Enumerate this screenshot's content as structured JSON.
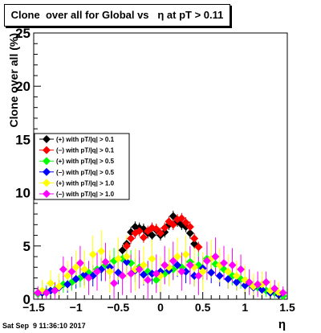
{
  "window": {
    "title": "Clone  over all for Global vs   η at pT > 0.11"
  },
  "footer": {
    "timestamp": "Sat Sep  9 11:36:10 2017"
  },
  "chart_data": {
    "type": "scatter",
    "title": "Clone  over all for Global vs   η at pT > 0.11",
    "xlabel": "η",
    "ylabel": "Clone  over all (%)",
    "xlim": [
      -1.5,
      1.5
    ],
    "ylim": [
      0,
      25
    ],
    "x_ticks": [
      "−1.5",
      "−1",
      "−0.5",
      "0",
      "0.5",
      "1",
      "1.5"
    ],
    "y_ticks": [
      "0",
      "5",
      "10",
      "15",
      "20",
      "25"
    ],
    "grid": false,
    "legend_position": "middle-left",
    "series": [
      {
        "name": "(+) with pT/|q| > 0.1",
        "color": "#000000",
        "x": [
          -0.45,
          -0.4,
          -0.35,
          -0.3,
          -0.25,
          -0.2,
          -0.15,
          -0.1,
          -0.05,
          0.0,
          0.05,
          0.1,
          0.15,
          0.2,
          0.25,
          0.3,
          0.35,
          0.4
        ],
        "y": [
          4.6,
          5.2,
          6.3,
          6.8,
          6.7,
          6.6,
          6.2,
          6.0,
          6.5,
          6.0,
          6.3,
          7.0,
          7.8,
          7.3,
          7.0,
          6.8,
          6.2,
          5.2
        ],
        "err": [
          0.5,
          0.5,
          0.5,
          0.5,
          0.5,
          0.5,
          0.5,
          0.5,
          0.5,
          0.5,
          0.5,
          0.5,
          0.5,
          0.5,
          0.5,
          0.5,
          0.5,
          0.5
        ]
      },
      {
        "name": "(−) with pT/|q| > 0.1",
        "color": "#ff0000",
        "x": [
          -0.4,
          -0.35,
          -0.3,
          -0.25,
          -0.2,
          -0.15,
          -0.1,
          -0.05,
          0.0,
          0.05,
          0.1,
          0.15,
          0.2,
          0.25,
          0.3,
          0.35,
          0.4,
          0.45
        ],
        "y": [
          5.0,
          5.7,
          6.2,
          6.4,
          5.8,
          6.4,
          6.7,
          6.6,
          6.2,
          6.7,
          7.3,
          7.0,
          7.5,
          7.6,
          7.2,
          6.8,
          5.7,
          4.9
        ],
        "err": [
          0.5,
          0.5,
          0.5,
          0.5,
          0.5,
          0.5,
          0.5,
          0.5,
          0.5,
          0.5,
          0.5,
          0.5,
          0.5,
          0.5,
          0.5,
          0.5,
          0.5,
          0.5
        ]
      },
      {
        "name": "(+) with pT/|q| > 0.5",
        "color": "#00ff00",
        "x": [
          -1.45,
          -1.35,
          -1.25,
          -1.15,
          -1.05,
          -0.95,
          -0.85,
          -0.75,
          -0.65,
          -0.55,
          -0.45,
          -0.35,
          -0.25,
          -0.15,
          -0.05,
          0.05,
          0.15,
          0.25,
          0.35,
          0.45,
          0.55,
          0.65,
          0.75,
          0.85,
          0.95,
          1.05,
          1.15,
          1.25,
          1.35,
          1.45
        ],
        "y": [
          0.5,
          0.7,
          0.9,
          1.4,
          1.6,
          2.0,
          2.5,
          2.8,
          3.2,
          3.6,
          3.8,
          3.4,
          3.0,
          2.6,
          1.8,
          2.4,
          2.8,
          3.0,
          3.5,
          3.2,
          3.8,
          3.3,
          2.8,
          2.2,
          1.9,
          1.5,
          1.1,
          0.8,
          0.6,
          0.3
        ],
        "err": [
          0.6,
          0.6,
          0.6,
          0.8,
          0.8,
          0.9,
          0.9,
          1.0,
          1.0,
          1.2,
          1.2,
          1.2,
          1.0,
          1.0,
          0.8,
          0.9,
          1.0,
          1.0,
          1.2,
          1.2,
          1.2,
          1.0,
          1.0,
          0.9,
          0.9,
          0.8,
          0.7,
          0.6,
          0.6,
          0.5
        ]
      },
      {
        "name": "(−) with pT/|q| > 0.5",
        "color": "#0000ff",
        "x": [
          -1.4,
          -1.3,
          -1.2,
          -1.1,
          -1.0,
          -0.9,
          -0.8,
          -0.7,
          -0.6,
          -0.5,
          -0.4,
          -0.3,
          -0.2,
          -0.1,
          0.0,
          0.1,
          0.2,
          0.3,
          0.4,
          0.5,
          0.6,
          0.7,
          0.8,
          0.9,
          1.0,
          1.1,
          1.2,
          1.3,
          1.4
        ],
        "y": [
          0.6,
          0.8,
          1.1,
          1.4,
          1.9,
          2.3,
          2.2,
          2.8,
          3.0,
          2.5,
          3.5,
          2.7,
          2.3,
          2.4,
          2.6,
          2.7,
          3.2,
          2.6,
          2.2,
          2.9,
          2.5,
          2.2,
          1.9,
          1.6,
          1.3,
          1.1,
          0.9,
          0.6,
          0.4
        ],
        "err": [
          0.6,
          0.6,
          0.7,
          0.8,
          0.9,
          1.0,
          1.0,
          1.1,
          1.1,
          1.1,
          1.2,
          1.1,
          1.0,
          1.0,
          1.0,
          1.0,
          1.1,
          1.1,
          1.0,
          1.1,
          1.0,
          1.0,
          0.9,
          0.8,
          0.8,
          0.7,
          0.7,
          0.6,
          0.5
        ]
      },
      {
        "name": "(+) with pT/|q| > 1.0",
        "color": "#ffff00",
        "x": [
          -1.4,
          -1.3,
          -1.2,
          -1.1,
          -1.0,
          -0.9,
          -0.8,
          -0.7,
          -0.6,
          -0.5,
          -0.4,
          -0.3,
          -0.2,
          -0.1,
          0.0,
          0.1,
          0.2,
          0.3,
          0.4,
          0.5,
          0.6,
          0.7,
          0.8,
          0.9,
          1.0,
          1.1,
          1.2,
          1.3,
          1.4
        ],
        "y": [
          0.8,
          1.5,
          1.2,
          2.2,
          3.0,
          2.8,
          4.2,
          4.5,
          2.6,
          3.8,
          4.0,
          2.8,
          3.2,
          3.8,
          2.2,
          3.0,
          4.0,
          4.2,
          3.0,
          2.6,
          3.8,
          3.2,
          2.6,
          2.2,
          1.8,
          1.2,
          1.4,
          0.8,
          0.6
        ],
        "err": [
          1.0,
          1.2,
          1.2,
          1.4,
          1.6,
          1.8,
          1.8,
          2.0,
          2.0,
          2.0,
          2.0,
          2.0,
          1.8,
          1.8,
          1.8,
          1.8,
          1.8,
          1.8,
          1.8,
          1.8,
          1.8,
          1.6,
          1.6,
          1.4,
          1.4,
          1.2,
          1.2,
          1.0,
          1.0
        ]
      },
      {
        "name": "(−) with pT/|q| > 1.0",
        "color": "#ff00ff",
        "x": [
          -1.45,
          -1.35,
          -1.25,
          -1.15,
          -1.05,
          -0.95,
          -0.85,
          -0.75,
          -0.65,
          -0.55,
          -0.45,
          -0.35,
          -0.25,
          -0.15,
          -0.05,
          0.05,
          0.15,
          0.25,
          0.35,
          0.45,
          0.55,
          0.65,
          0.75,
          0.85,
          0.95,
          1.05,
          1.15,
          1.25,
          1.35,
          1.45
        ],
        "y": [
          0.6,
          0.6,
          0.8,
          2.8,
          2.6,
          3.4,
          2.0,
          2.6,
          3.5,
          1.5,
          2.2,
          2.4,
          2.8,
          1.8,
          2.4,
          3.2,
          3.6,
          2.6,
          3.2,
          2.2,
          3.6,
          4.0,
          3.4,
          3.2,
          2.8,
          1.6,
          1.4,
          1.6,
          1.0,
          0.6
        ],
        "err": [
          0.6,
          0.6,
          0.8,
          1.2,
          1.4,
          1.6,
          1.6,
          1.8,
          1.8,
          1.8,
          1.8,
          1.8,
          1.8,
          1.8,
          1.8,
          1.8,
          1.8,
          1.8,
          1.8,
          1.8,
          1.8,
          1.8,
          1.6,
          1.6,
          1.4,
          1.2,
          1.2,
          1.0,
          0.8,
          0.6
        ]
      }
    ]
  }
}
